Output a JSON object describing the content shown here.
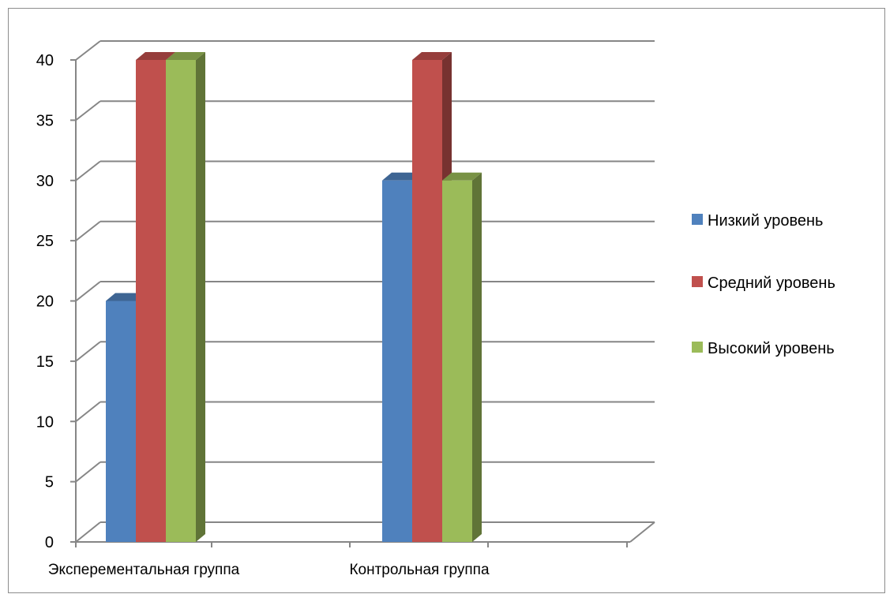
{
  "chart_data": {
    "type": "bar",
    "categories": [
      "Эксперементальная группа",
      "Контрольная группа"
    ],
    "series": [
      {
        "name": "Низкий уровень",
        "values": [
          20,
          30
        ],
        "color": "#4F81BD"
      },
      {
        "name": "Средний уровень",
        "values": [
          40,
          40
        ],
        "color": "#C0504D"
      },
      {
        "name": "Высокий уровень",
        "values": [
          40,
          30
        ],
        "color": "#9BBB59"
      }
    ],
    "yticks": [
      0,
      5,
      10,
      15,
      20,
      25,
      30,
      35,
      40
    ],
    "ylim": [
      0,
      40
    ],
    "grid": true,
    "style": "3d-clustered-column",
    "legend": "right"
  }
}
